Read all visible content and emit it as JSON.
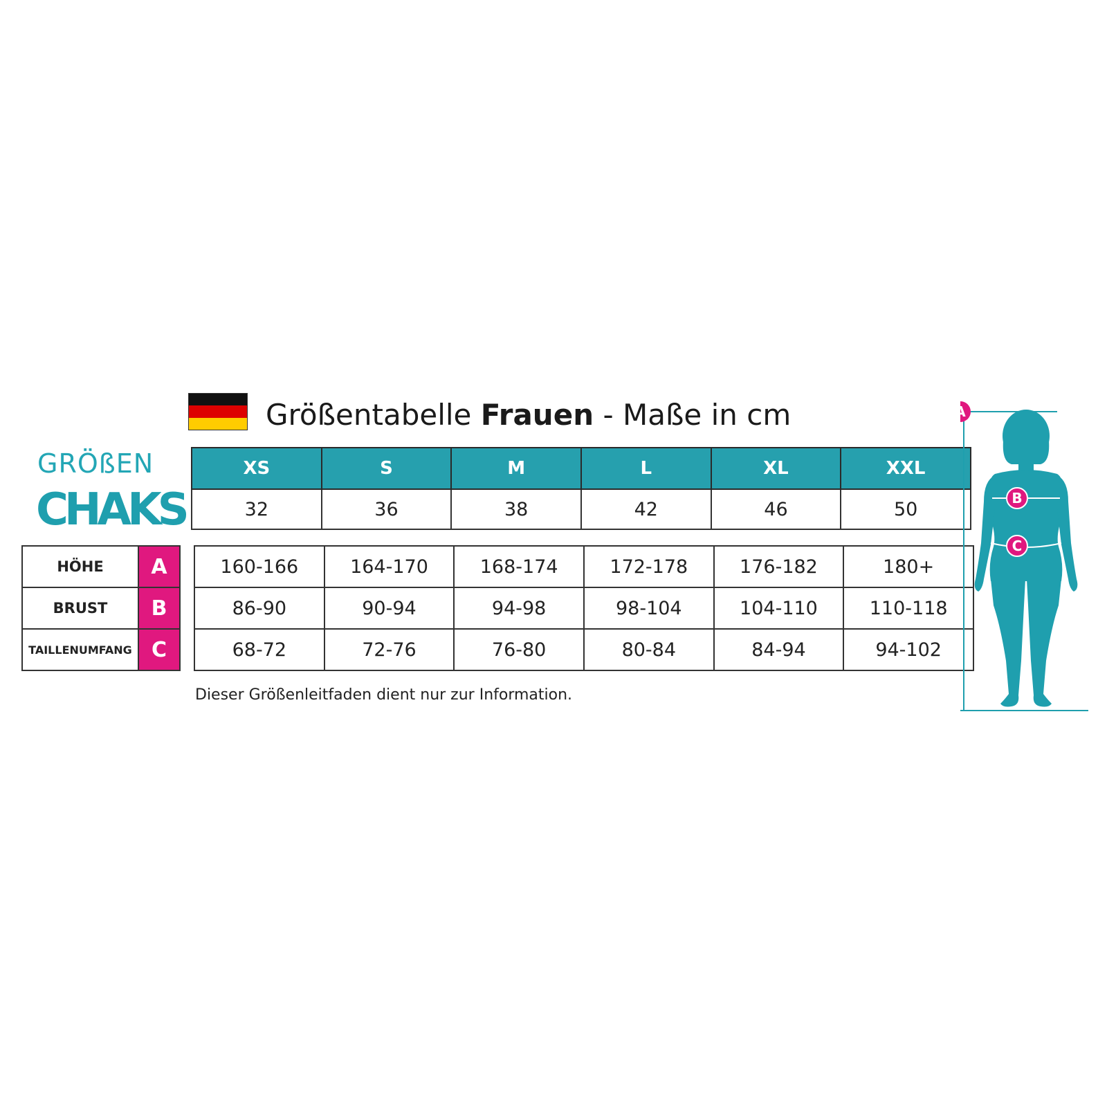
{
  "title": {
    "prefix": "Größentabelle",
    "bold": "Frauen",
    "suffix": "- Maße in cm"
  },
  "flag": {
    "colors": [
      "#111111",
      "#dd0000",
      "#ffcc00"
    ]
  },
  "logo": {
    "top": "GRÖßEN",
    "main": "CHAKS",
    "color": "#23a6b5"
  },
  "sizes": {
    "headers": [
      "XS",
      "S",
      "M",
      "L",
      "XL",
      "XXL"
    ],
    "numbers": [
      "32",
      "36",
      "38",
      "42",
      "46",
      "50"
    ]
  },
  "measurements": [
    {
      "label": "HÖHE",
      "letter": "A",
      "values": [
        "160-166",
        "164-170",
        "168-174",
        "172-178",
        "176-182",
        "180+"
      ]
    },
    {
      "label": "BRUST",
      "letter": "B",
      "values": [
        "86-90",
        "90-94",
        "94-98",
        "98-104",
        "104-110",
        "110-118"
      ]
    },
    {
      "label": "TAILLENUMFANG",
      "letter": "C",
      "values": [
        "68-72",
        "72-76",
        "76-80",
        "80-84",
        "84-94",
        "94-102"
      ]
    }
  ],
  "note": "Dieser Größenleitfaden dient nur zur Information.",
  "figure": {
    "markers": [
      "A",
      "B",
      "C"
    ],
    "body_color": "#1f9fae",
    "marker_color": "#e0187f"
  }
}
